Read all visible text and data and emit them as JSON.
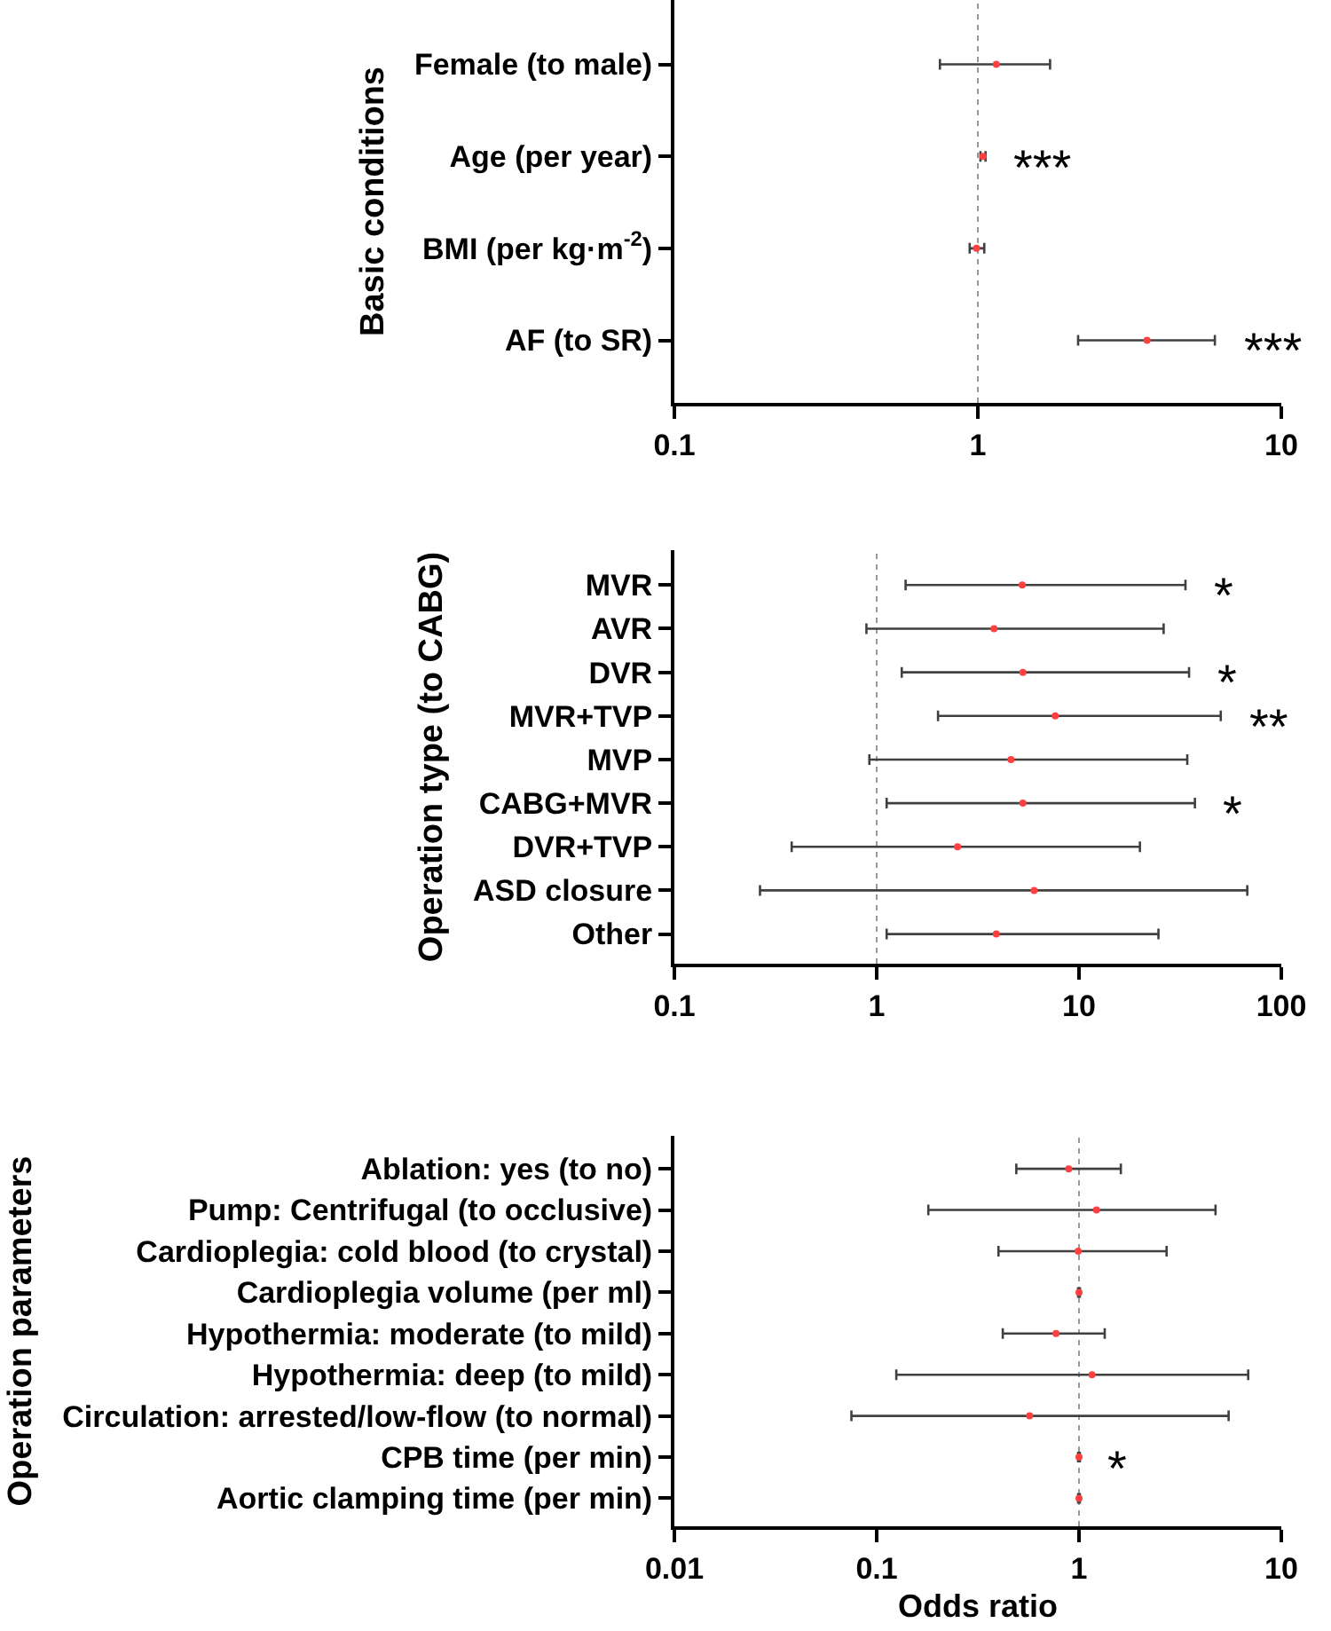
{
  "chart_data": [
    {
      "type": "scatter",
      "orientation": "horizontal",
      "log": "x",
      "ylabel": "Basic conditions",
      "categories": [
        "Female (to male)",
        "Age (per year)",
        "BMI (per kg·m$^{-2}$)",
        "AF (to SR)"
      ],
      "series": [
        {
          "color": "#ff4040",
          "values": [
            1.15,
            1.04,
            0.99,
            3.61
          ],
          "errors": [
            [
              0.75,
              1.73
            ],
            [
              1.02,
              1.06
            ],
            [
              0.94,
              1.05
            ],
            [
              2.14,
              6.04
            ]
          ]
        }
      ],
      "annotations": [
        {
          "text": "***",
          "x": 1.06,
          "y": "Age (per year)"
        },
        {
          "text": "***",
          "x": 6.04,
          "y": "AF (to SR)"
        }
      ],
      "xlim": [
        0.1,
        10
      ],
      "xticks": [
        0.1,
        1,
        10
      ],
      "grid": false,
      "marker": "circle",
      "ref_lines": [
        {
          "axis": "x",
          "value": 1,
          "line_style": "dotted",
          "color": "#999999"
        }
      ]
    },
    {
      "type": "scatter",
      "orientation": "horizontal",
      "log": "x",
      "ylabel": "Operation type (to CABG)",
      "categories": [
        "MVR",
        "AVR",
        "DVR",
        "MVR+TVP",
        "MVP",
        "CABG+MVR",
        "DVR+TVP",
        "ASD closure",
        "Other"
      ],
      "series": [
        {
          "color": "#ff4040",
          "values": [
            5.24,
            3.8,
            5.28,
            7.63,
            4.61,
            5.28,
            2.51,
            6.0,
            3.9
          ],
          "errors": [
            [
              1.39,
              33.6
            ],
            [
              0.89,
              26.2
            ],
            [
              1.33,
              35.0
            ],
            [
              2.01,
              50.2
            ],
            [
              0.92,
              34.3
            ],
            [
              1.12,
              37.4
            ],
            [
              0.38,
              20.0
            ],
            [
              0.265,
              67.9
            ],
            [
              1.12,
              24.7
            ]
          ]
        }
      ],
      "annotations": [
        {
          "text": "*",
          "x": 33.6,
          "y": "MVR"
        },
        {
          "text": "*",
          "x": 35.0,
          "y": "DVR"
        },
        {
          "text": "**",
          "x": 50.2,
          "y": "MVR+TVP"
        },
        {
          "text": "*",
          "x": 37.4,
          "y": "CABG+MVR"
        }
      ],
      "xlim": [
        0.1,
        100
      ],
      "xticks": [
        0.1,
        1,
        10,
        100
      ],
      "grid": false,
      "marker": "circle",
      "ref_lines": [
        {
          "axis": "x",
          "value": 1,
          "line_style": "dotted",
          "color": "#999999"
        }
      ]
    },
    {
      "type": "scatter",
      "orientation": "horizontal",
      "log": "x",
      "ylabel": "Operation parameters",
      "xlabel": "Odds ratio",
      "categories": [
        "Ablation: yes (to no)",
        "Pump: Centrifugal (to occlusive)",
        "Cardioplegia: cold blood (to crystal)",
        "Cardioplegia volume (per ml)",
        "Hypothermia: moderate (to mild)",
        "Hypothermia: deep (to mild)",
        "Circulation: arrested/low-flow (to normal)",
        "CPB time (per min)",
        "Aortic clamping time (per min)"
      ],
      "series": [
        {
          "color": "#ff4040",
          "values": [
            0.89,
            1.22,
            0.99,
            1.0,
            0.77,
            1.16,
            0.57,
            1.0,
            1.0
          ],
          "errors": [
            [
              0.49,
              1.61
            ],
            [
              0.18,
              4.73
            ],
            [
              0.4,
              2.71
            ],
            [
              0.99,
              1.01
            ],
            [
              0.42,
              1.34
            ],
            [
              0.125,
              6.86
            ],
            [
              0.075,
              5.49
            ],
            [
              0.99,
              1.01
            ],
            [
              0.99,
              1.01
            ]
          ]
        }
      ],
      "annotations": [
        {
          "text": "*",
          "x": 1.01,
          "y": "CPB time (per min)"
        }
      ],
      "xlim": [
        0.01,
        10
      ],
      "xticks": [
        0.01,
        0.1,
        1,
        10
      ],
      "grid": false,
      "marker": "circle",
      "ref_lines": [
        {
          "axis": "x",
          "value": 1,
          "line_style": "dotted",
          "color": "#999999"
        }
      ]
    }
  ]
}
